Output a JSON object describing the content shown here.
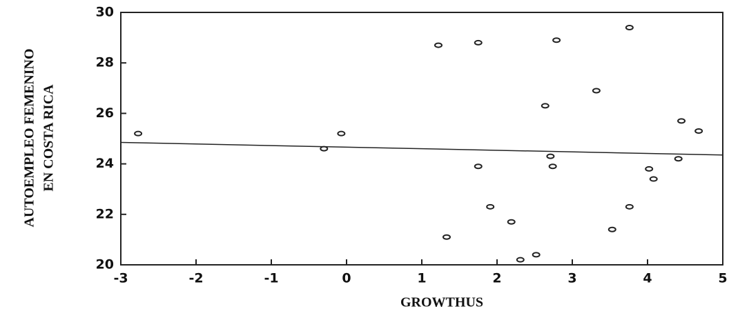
{
  "chart_data": {
    "type": "scatter",
    "xlabel": "GROWTHUS",
    "ylabel": [
      "AUTOEMPLEO FEMENINO",
      "EN COSTA RICA"
    ],
    "x": [
      -2.77,
      -0.07,
      -0.3,
      1.22,
      1.75,
      2.79,
      3.76,
      3.32,
      2.64,
      4.45,
      4.68,
      2.71,
      2.74,
      1.75,
      4.02,
      4.08,
      4.41,
      3.76,
      1.91,
      2.19,
      1.33,
      3.53,
      2.31,
      2.52
    ],
    "values": [
      25.2,
      25.2,
      24.6,
      28.7,
      28.8,
      28.9,
      29.4,
      26.9,
      26.3,
      25.7,
      25.3,
      24.3,
      23.9,
      23.9,
      23.8,
      23.4,
      24.2,
      22.3,
      22.3,
      21.7,
      21.1,
      21.4,
      20.2,
      20.4
    ],
    "fit_line": {
      "x": [
        -3,
        5
      ],
      "values": [
        24.85,
        24.35
      ]
    },
    "color": "#222222",
    "xlim": [
      -3,
      5
    ],
    "xticks": [
      -3,
      -2,
      -1,
      0,
      1,
      2,
      3,
      4,
      5
    ],
    "ylim": [
      20,
      30
    ],
    "yticks": [
      20,
      22,
      24,
      26,
      28,
      30
    ],
    "grid": false
  }
}
